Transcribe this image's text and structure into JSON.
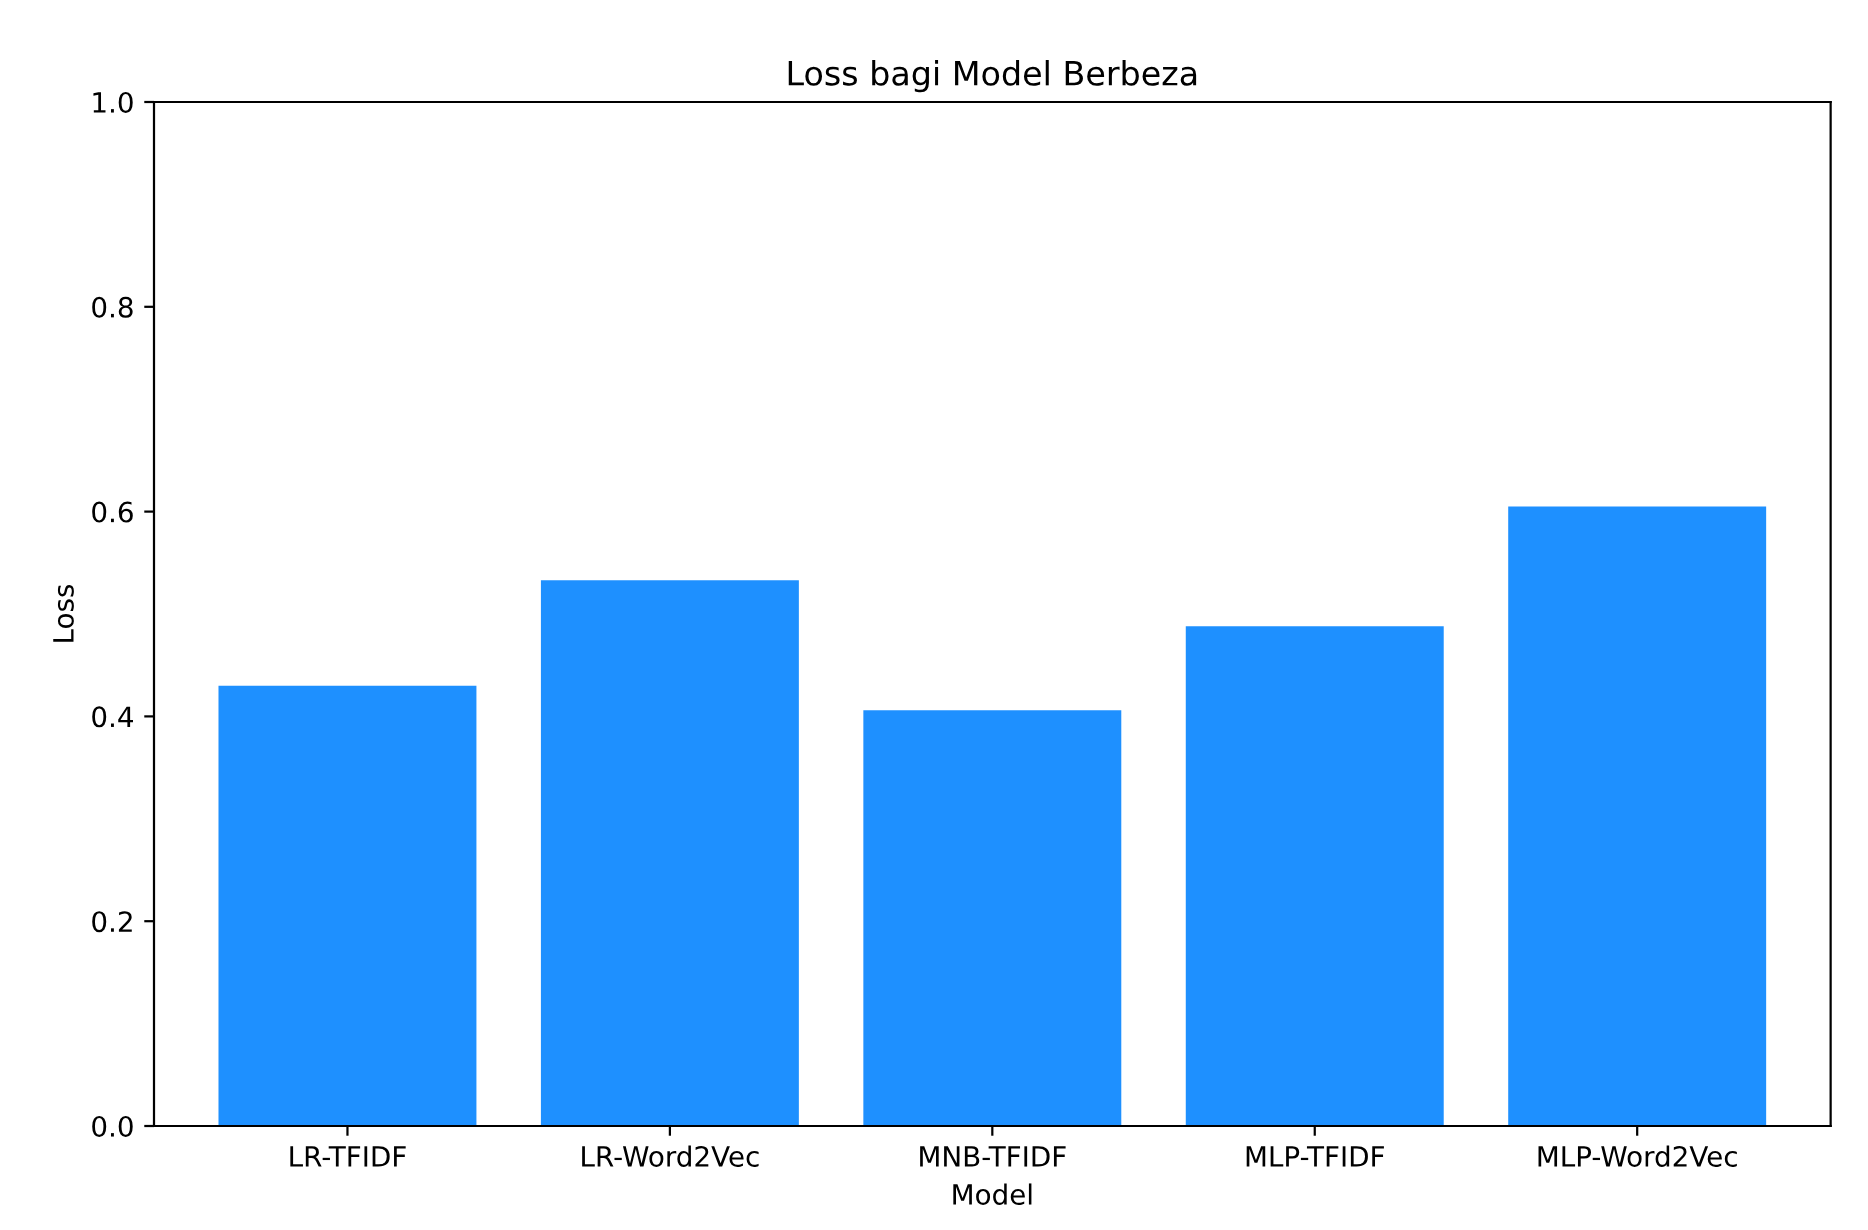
{
  "chart_data": {
    "type": "bar",
    "title": "Loss bagi Model Berbeza",
    "xlabel": "Model",
    "ylabel": "Loss",
    "categories": [
      "LR-TFIDF",
      "LR-Word2Vec",
      "MNB-TFIDF",
      "MLP-TFIDF",
      "MLP-Word2Vec"
    ],
    "values": [
      0.43,
      0.533,
      0.406,
      0.488,
      0.605
    ],
    "color": "#1e90ff",
    "ylim": [
      0,
      1
    ],
    "yticks": [
      {
        "value": 0,
        "label": "0.0"
      },
      {
        "value": 0.2,
        "label": "0.2"
      },
      {
        "value": 0.4,
        "label": "0.4"
      },
      {
        "value": 0.6,
        "label": "0.6"
      },
      {
        "value": 0.8,
        "label": "0.8"
      },
      {
        "value": 1,
        "label": "1.0"
      }
    ],
    "grid": false
  }
}
